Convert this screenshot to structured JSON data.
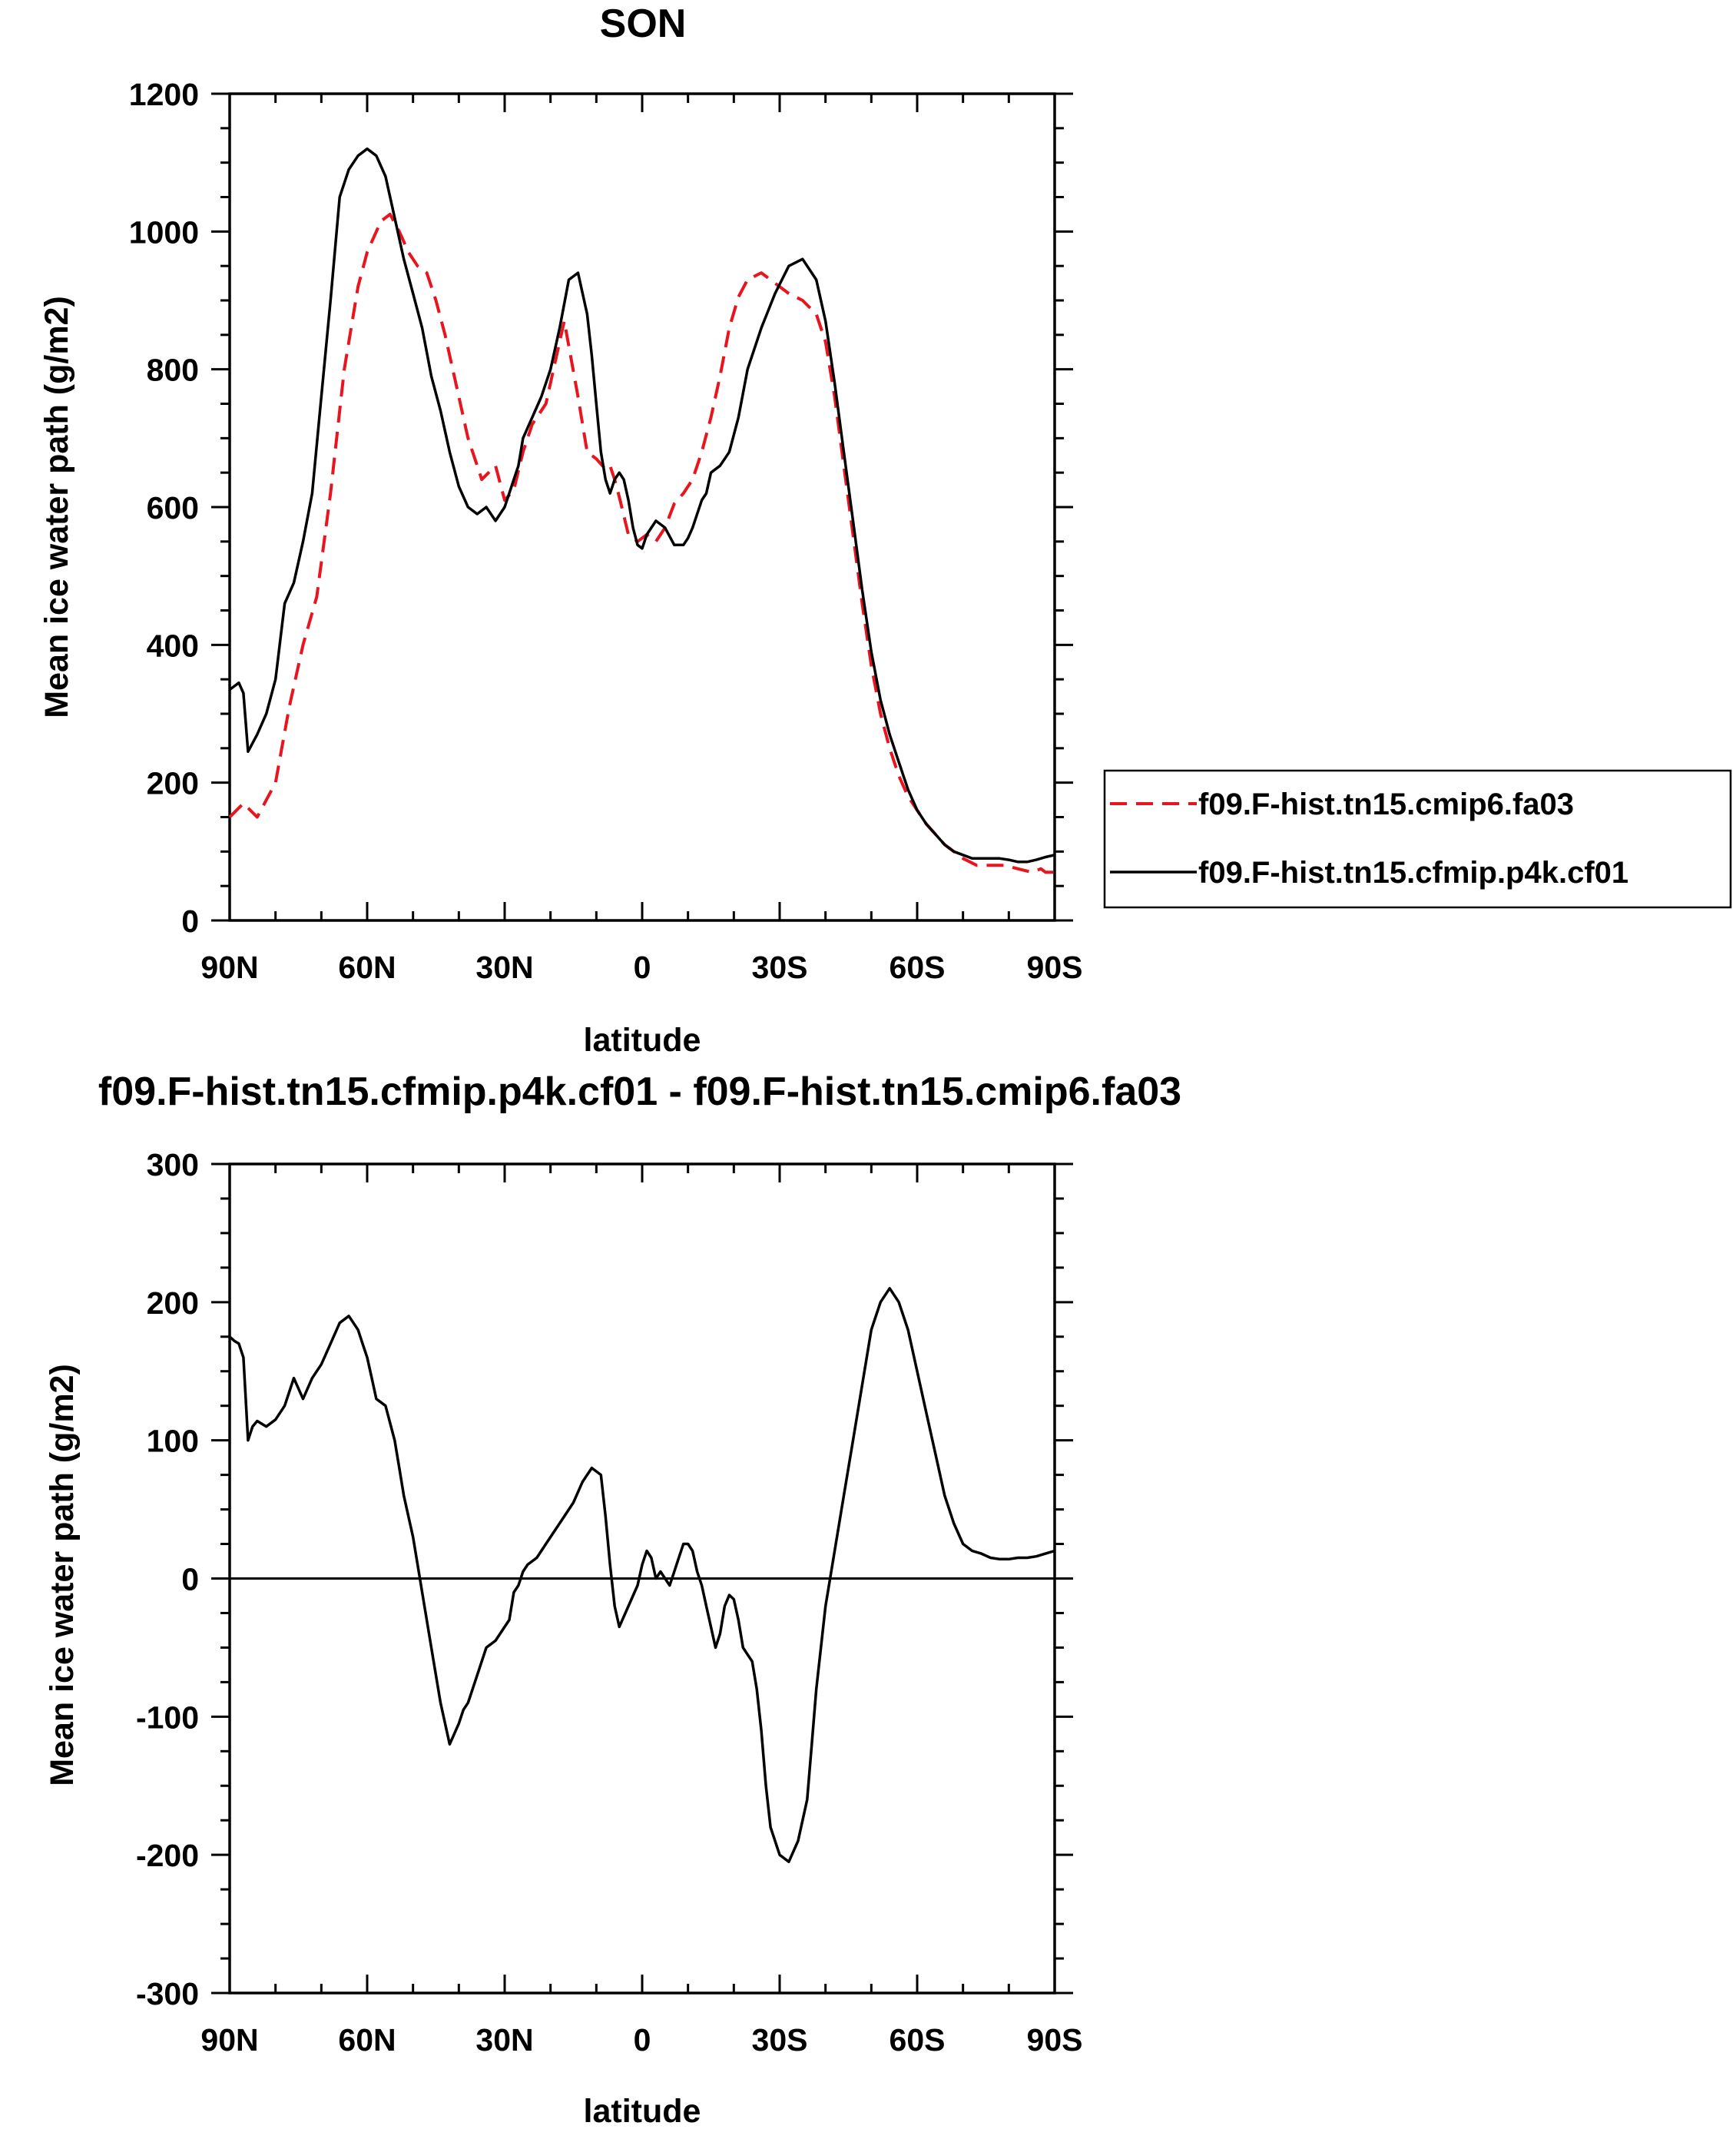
{
  "chart_data": [
    {
      "type": "line",
      "title": "SON",
      "xlabel": "latitude",
      "ylabel": "Mean ice water path (g/m2)",
      "xlim": [
        90,
        -90
      ],
      "ylim": [
        0,
        1200
      ],
      "xticks": [
        90,
        60,
        30,
        0,
        -30,
        -60,
        -90
      ],
      "xtick_labels": [
        "90N",
        "60N",
        "30N",
        "0",
        "30S",
        "60S",
        "90S"
      ],
      "yticks": [
        0,
        200,
        400,
        600,
        800,
        1000,
        1200
      ],
      "ytick_labels": [
        "0",
        "200",
        "400",
        "600",
        "800",
        "1000",
        "1200"
      ],
      "legend": "right",
      "series": [
        {
          "name": "f09.F-hist.tn15.cmip6.fa03",
          "color": "#e8141e",
          "dash": "dashed",
          "x": [
            90,
            87,
            84,
            80,
            77,
            74,
            71,
            68,
            65,
            62,
            60,
            57,
            55,
            53,
            51,
            49,
            47,
            45,
            43,
            41,
            38,
            35,
            32,
            30,
            28,
            26,
            24,
            21,
            19,
            17,
            14,
            12,
            10,
            8,
            7,
            6,
            5,
            3,
            1,
            -1,
            -3,
            -5,
            -7,
            -9,
            -11,
            -13,
            -15,
            -17,
            -19,
            -21,
            -23,
            -26,
            -29,
            -32,
            -35,
            -38,
            -40,
            -42,
            -44,
            -46,
            -48,
            -50,
            -52,
            -54,
            -56,
            -58,
            -60,
            -62,
            -64,
            -66,
            -68,
            -70,
            -73,
            -76,
            -79,
            -82,
            -85,
            -87,
            -88,
            -90
          ],
          "y": [
            150,
            170,
            150,
            200,
            310,
            400,
            470,
            620,
            800,
            920,
            970,
            1015,
            1025,
            1000,
            970,
            950,
            940,
            900,
            850,
            790,
            700,
            640,
            660,
            610,
            625,
            680,
            720,
            750,
            810,
            870,
            760,
            680,
            670,
            655,
            660,
            640,
            615,
            560,
            550,
            560,
            550,
            570,
            605,
            620,
            640,
            680,
            730,
            790,
            860,
            905,
            930,
            940,
            925,
            910,
            900,
            880,
            840,
            760,
            660,
            560,
            460,
            370,
            300,
            250,
            210,
            180,
            160,
            140,
            125,
            110,
            100,
            90,
            80,
            80,
            80,
            75,
            70,
            75,
            70,
            70
          ]
        },
        {
          "name": "f09.F-hist.tn15.cfmip.p4k.cf01",
          "color": "#000000",
          "dash": "solid",
          "x": [
            90,
            88,
            87,
            86,
            84,
            82,
            80,
            78,
            76,
            74,
            72,
            70,
            68,
            66,
            64,
            62,
            60,
            58,
            56,
            54,
            52,
            50,
            48,
            46,
            44,
            42,
            40,
            38,
            36,
            34,
            32,
            30,
            28,
            27,
            26,
            24,
            22,
            20,
            18,
            16,
            14,
            12,
            11,
            10,
            9,
            8,
            7,
            6,
            5,
            4,
            3,
            2,
            1,
            0,
            -1,
            -3,
            -5,
            -7,
            -9,
            -10,
            -11,
            -12,
            -13,
            -14,
            -15,
            -17,
            -19,
            -21,
            -23,
            -26,
            -29,
            -32,
            -35,
            -38,
            -40,
            -42,
            -44,
            -46,
            -48,
            -50,
            -52,
            -54,
            -56,
            -58,
            -60,
            -62,
            -64,
            -66,
            -68,
            -70,
            -72,
            -74,
            -76,
            -78,
            -80,
            -82,
            -84,
            -86,
            -88,
            -90
          ],
          "y": [
            335,
            345,
            330,
            245,
            270,
            300,
            350,
            460,
            490,
            550,
            620,
            760,
            900,
            1050,
            1090,
            1110,
            1120,
            1110,
            1080,
            1020,
            960,
            910,
            860,
            790,
            740,
            680,
            630,
            600,
            590,
            600,
            580,
            600,
            640,
            660,
            700,
            730,
            760,
            800,
            860,
            930,
            940,
            880,
            820,
            750,
            680,
            640,
            620,
            640,
            650,
            640,
            610,
            570,
            545,
            540,
            560,
            580,
            570,
            545,
            545,
            555,
            570,
            590,
            610,
            620,
            650,
            660,
            680,
            730,
            800,
            860,
            910,
            950,
            960,
            930,
            870,
            780,
            680,
            580,
            480,
            390,
            320,
            270,
            230,
            190,
            160,
            140,
            125,
            110,
            100,
            95,
            90,
            90,
            90,
            90,
            88,
            85,
            85,
            88,
            92,
            95
          ]
        }
      ]
    },
    {
      "type": "line",
      "title": "f09.F-hist.tn15.cfmip.p4k.cf01 - f09.F-hist.tn15.cmip6.fa03",
      "xlabel": "latitude",
      "ylabel": "Mean ice water path (g/m2)",
      "xlim": [
        90,
        -90
      ],
      "ylim": [
        -300,
        300
      ],
      "xticks": [
        90,
        60,
        30,
        0,
        -30,
        -60,
        -90
      ],
      "xtick_labels": [
        "90N",
        "60N",
        "30N",
        "0",
        "30S",
        "60S",
        "90S"
      ],
      "yticks": [
        -300,
        -200,
        -100,
        0,
        100,
        200,
        300
      ],
      "ytick_labels": [
        "-300",
        "-200",
        "-100",
        "0",
        "100",
        "200",
        "300"
      ],
      "zero_line": true,
      "series": [
        {
          "color": "#000000",
          "dash": "solid",
          "x": [
            90,
            89,
            88,
            87,
            86,
            85,
            84,
            82,
            80,
            78,
            76,
            74,
            72,
            70,
            68,
            66,
            64,
            62,
            61,
            60,
            59,
            58,
            56,
            54,
            53,
            52,
            50,
            48,
            46,
            44,
            42,
            40,
            39,
            38,
            36,
            34,
            32,
            30,
            29,
            28,
            27,
            26,
            25,
            23,
            21,
            19,
            17,
            15,
            13,
            11,
            9,
            8,
            7,
            6,
            5,
            3,
            1,
            0,
            -1,
            -2,
            -3,
            -4,
            -5,
            -6,
            -7,
            -8,
            -9,
            -10,
            -11,
            -12,
            -13,
            -14,
            -15,
            -16,
            -17,
            -18,
            -19,
            -20,
            -21,
            -22,
            -23,
            -24,
            -25,
            -26,
            -27,
            -28,
            -30,
            -32,
            -34,
            -36,
            -37,
            -38,
            -39,
            -40,
            -42,
            -44,
            -46,
            -48,
            -50,
            -52,
            -54,
            -56,
            -58,
            -60,
            -62,
            -64,
            -66,
            -68,
            -70,
            -72,
            -74,
            -76,
            -78,
            -80,
            -82,
            -84,
            -86,
            -88,
            -90
          ],
          "y": [
            175,
            172,
            170,
            160,
            100,
            110,
            114,
            110,
            115,
            125,
            145,
            130,
            145,
            155,
            170,
            185,
            190,
            180,
            170,
            160,
            145,
            130,
            125,
            100,
            80,
            60,
            30,
            -10,
            -50,
            -90,
            -120,
            -105,
            -95,
            -90,
            -70,
            -50,
            -45,
            -35,
            -30,
            -10,
            -5,
            5,
            10,
            15,
            25,
            35,
            45,
            55,
            70,
            80,
            75,
            45,
            10,
            -20,
            -35,
            -20,
            -5,
            10,
            20,
            15,
            0,
            5,
            0,
            -5,
            5,
            15,
            25,
            25,
            20,
            5,
            -5,
            -20,
            -35,
            -50,
            -40,
            -20,
            -12,
            -15,
            -30,
            -50,
            -55,
            -60,
            -80,
            -110,
            -150,
            -180,
            -200,
            -205,
            -190,
            -160,
            -120,
            -80,
            -50,
            -20,
            20,
            60,
            100,
            140,
            180,
            200,
            210,
            200,
            180,
            150,
            120,
            90,
            60,
            40,
            25,
            20,
            18,
            15,
            14,
            14,
            15,
            15,
            16,
            18,
            20
          ]
        }
      ]
    }
  ]
}
